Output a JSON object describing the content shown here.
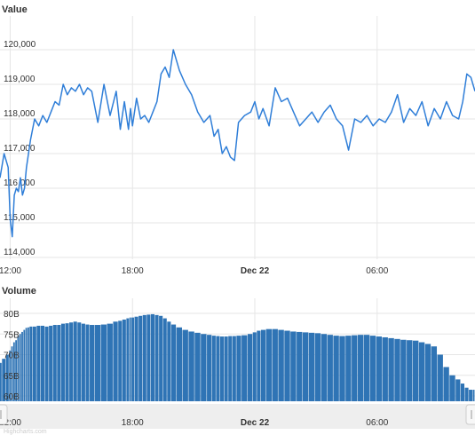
{
  "colors": {
    "price_line": "#2f7ed8",
    "volume_bars": "#2f74b5",
    "grid": "#e6e6e6",
    "navigator_band": "#eeeeee"
  },
  "chart_data": [
    {
      "type": "line",
      "title": "Value",
      "ylim": [
        114000,
        120000
      ],
      "y_ticks": [
        "114,000",
        "115,000",
        "116,000",
        "117,000",
        "118,000",
        "119,000",
        "120,000"
      ],
      "x_ticks": [
        "12:00",
        "18:00",
        "Dec 22",
        "06:00"
      ],
      "x_ticks_bold": [
        "Dec 22"
      ],
      "x_range_hours": [
        -0.5,
        22.8
      ],
      "grid": true,
      "x": [
        -0.5,
        -0.3,
        -0.1,
        0.0,
        0.1,
        0.2,
        0.3,
        0.4,
        0.5,
        0.6,
        0.7,
        0.8,
        0.9,
        1.0,
        1.2,
        1.4,
        1.6,
        1.8,
        2.0,
        2.2,
        2.4,
        2.6,
        2.8,
        3.0,
        3.2,
        3.4,
        3.6,
        3.8,
        4.0,
        4.3,
        4.6,
        4.9,
        5.2,
        5.4,
        5.6,
        5.8,
        5.9,
        6.0,
        6.2,
        6.4,
        6.6,
        6.8,
        7.0,
        7.2,
        7.4,
        7.6,
        7.8,
        8.0,
        8.3,
        8.6,
        8.9,
        9.2,
        9.5,
        9.8,
        10.0,
        10.2,
        10.4,
        10.6,
        10.8,
        11.0,
        11.2,
        11.5,
        11.8,
        12.0,
        12.2,
        12.4,
        12.7,
        13.0,
        13.3,
        13.6,
        13.9,
        14.2,
        14.5,
        14.8,
        15.1,
        15.4,
        15.7,
        16.0,
        16.3,
        16.6,
        16.9,
        17.2,
        17.5,
        17.8,
        18.1,
        18.4,
        18.7,
        19.0,
        19.3,
        19.6,
        19.9,
        20.2,
        20.5,
        20.8,
        21.1,
        21.4,
        21.7,
        22.0,
        22.2,
        22.4,
        22.6,
        22.8
      ],
      "values": [
        116300,
        117000,
        116600,
        115100,
        114600,
        115800,
        116000,
        115900,
        116300,
        115800,
        116000,
        116600,
        117000,
        117400,
        118000,
        117800,
        118100,
        117900,
        118200,
        118500,
        118400,
        119000,
        118700,
        118900,
        118800,
        119000,
        118700,
        118900,
        118800,
        117900,
        119000,
        118100,
        118800,
        117700,
        118500,
        117700,
        118300,
        117800,
        118600,
        118000,
        118100,
        117900,
        118200,
        118500,
        119300,
        119500,
        119200,
        120000,
        119400,
        119000,
        118700,
        118200,
        117900,
        118100,
        117500,
        117700,
        117000,
        117200,
        116900,
        116800,
        117900,
        118100,
        118200,
        118500,
        118000,
        118300,
        117800,
        118900,
        118500,
        118600,
        118200,
        117800,
        118000,
        118200,
        117900,
        118200,
        118400,
        118000,
        117800,
        117100,
        118000,
        117900,
        118100,
        117800,
        118000,
        117900,
        118200,
        118700,
        117900,
        118300,
        118100,
        118500,
        117800,
        118300,
        118000,
        118500,
        118100,
        118000,
        118500,
        119300,
        119200,
        118800
      ]
    },
    {
      "type": "bar",
      "title": "Volume",
      "ylim": [
        58,
        82
      ],
      "y_ticks": [
        "60B",
        "65B",
        "70B",
        "75B",
        "80B"
      ],
      "x_ticks": [
        "12:00",
        "18:00",
        "Dec 22",
        "06:00"
      ],
      "x_ticks_bold": [
        "Dec 22"
      ],
      "x_range_hours": [
        -0.5,
        22.8
      ],
      "grid": true,
      "x": [
        -0.5,
        -0.3,
        -0.1,
        0.0,
        0.1,
        0.2,
        0.3,
        0.4,
        0.5,
        0.6,
        0.7,
        0.8,
        0.9,
        1.0,
        1.2,
        1.4,
        1.6,
        1.8,
        2.0,
        2.2,
        2.4,
        2.6,
        2.8,
        3.0,
        3.2,
        3.4,
        3.6,
        3.8,
        4.0,
        4.3,
        4.6,
        4.9,
        5.2,
        5.4,
        5.6,
        5.8,
        5.9,
        6.0,
        6.2,
        6.4,
        6.6,
        6.8,
        7.0,
        7.2,
        7.4,
        7.6,
        7.8,
        8.0,
        8.3,
        8.6,
        8.9,
        9.2,
        9.5,
        9.8,
        10.0,
        10.2,
        10.4,
        10.6,
        10.8,
        11.0,
        11.2,
        11.5,
        11.8,
        12.0,
        12.2,
        12.4,
        12.7,
        13.0,
        13.3,
        13.6,
        13.9,
        14.2,
        14.5,
        14.8,
        15.1,
        15.4,
        15.7,
        16.0,
        16.3,
        16.6,
        16.9,
        17.2,
        17.5,
        17.8,
        18.1,
        18.4,
        18.7,
        19.0,
        19.3,
        19.6,
        19.9,
        20.2,
        20.5,
        20.8,
        21.1,
        21.4,
        21.7,
        22.0,
        22.2,
        22.4,
        22.6,
        22.8
      ],
      "values": [
        68,
        69,
        70,
        71,
        72,
        73,
        73.5,
        74.5,
        75,
        75.5,
        76,
        76.5,
        76.6,
        76.8,
        76.8,
        77,
        77,
        76.8,
        77,
        77.2,
        77.2,
        77.5,
        77.6,
        77.8,
        78,
        77.8,
        77.5,
        77.3,
        77.2,
        77.2,
        77.3,
        77.5,
        78,
        78.2,
        78.5,
        78.8,
        79,
        79,
        79.2,
        79.4,
        79.6,
        79.7,
        79.8,
        79.6,
        79.4,
        78.8,
        78,
        77.3,
        76.6,
        76,
        75.6,
        75.3,
        75,
        74.8,
        74.6,
        74.5,
        74.4,
        74.4,
        74.5,
        74.5,
        74.6,
        74.7,
        75,
        75.4,
        75.8,
        76,
        76.2,
        76.2,
        76,
        75.8,
        75.6,
        75.5,
        75.4,
        75.3,
        75.2,
        75,
        74.8,
        74.6,
        74.5,
        74.6,
        74.7,
        74.8,
        74.8,
        74.6,
        74.4,
        74.2,
        74,
        73.8,
        73.6,
        73.5,
        73.4,
        73,
        72.6,
        72,
        70,
        67,
        65,
        64,
        63,
        62,
        61.5,
        61.5
      ]
    }
  ],
  "navigator": {
    "x_ticks": [
      "12:00",
      "18:00",
      "Dec 22",
      "06:00"
    ],
    "x_ticks_bold": [
      "Dec 22"
    ]
  },
  "footer": {
    "credit_text": "Highcharts.com"
  }
}
